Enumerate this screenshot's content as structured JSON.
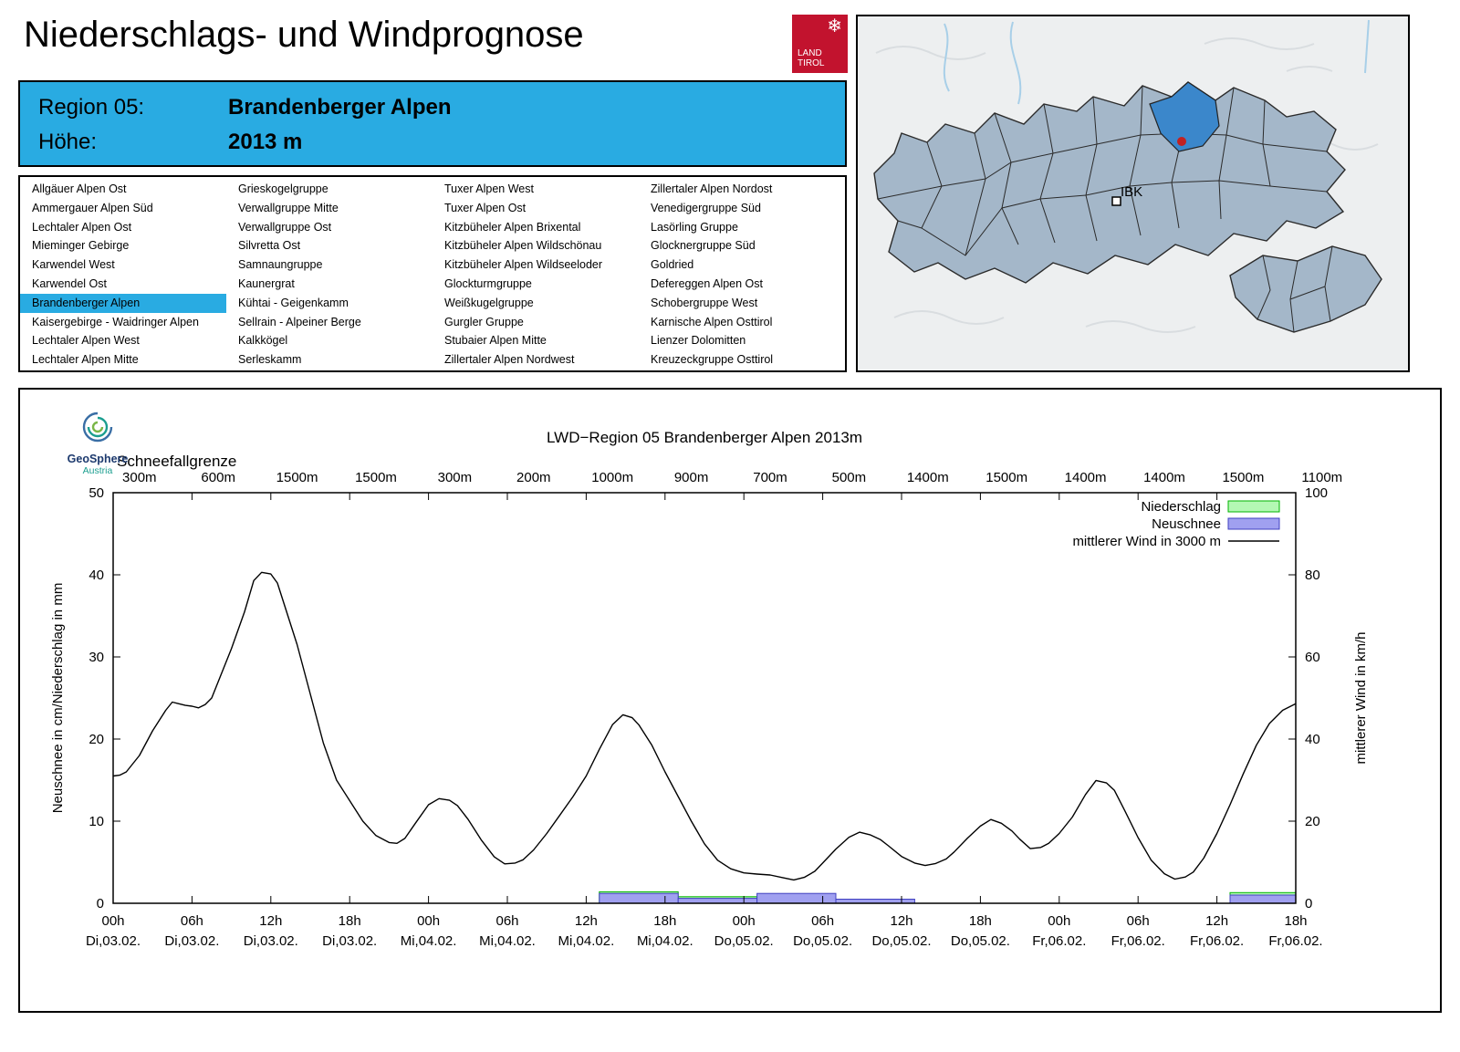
{
  "header": {
    "title": "Niederschlags- und Windprognose",
    "logo": {
      "line1": "LAND",
      "line2": "TIROL",
      "color": "#c2132e",
      "icon": "snowflake-icon"
    }
  },
  "region_box": {
    "region_label": "Region 05:",
    "region_value": "Brandenberger Alpen",
    "altitude_label": "Höhe:",
    "altitude_value": "2013 m",
    "background": "#29abe2"
  },
  "region_list": {
    "selected": "Brandenberger Alpen",
    "selected_color": "#29abe2",
    "columns": [
      [
        "Allgäuer Alpen Ost",
        "Ammergauer Alpen Süd",
        "Lechtaler Alpen Ost",
        "Mieminger Gebirge",
        "Karwendel West",
        "Karwendel Ost",
        "Brandenberger Alpen",
        "Kaisergebirge - Waidringer Alpen",
        "Lechtaler Alpen West",
        "Lechtaler Alpen Mitte"
      ],
      [
        "Grieskogelgruppe",
        "Verwallgruppe Mitte",
        "Verwallgruppe Ost",
        "Silvretta Ost",
        "Samnaungruppe",
        "Kaunergrat",
        "Kühtai - Geigenkamm",
        "Sellrain - Alpeiner Berge",
        "Kalkkögel",
        "Serleskamm"
      ],
      [
        "Tuxer Alpen West",
        "Tuxer Alpen Ost",
        "Kitzbüheler Alpen Brixental",
        "Kitzbüheler Alpen Wildschönau",
        "Kitzbüheler Alpen Wildseeloder",
        "Glockturmgruppe",
        "Weißkugelgruppe",
        "Gurgler Gruppe",
        "Stubaier Alpen Mitte",
        "Zillertaler Alpen Nordwest"
      ],
      [
        "Zillertaler Alpen Nordost",
        "Venedigergruppe Süd",
        "Lasörling Gruppe",
        "Glocknergruppe Süd",
        "Goldried",
        "Defereggen Alpen Ost",
        "Schobergruppe West",
        "Karnische Alpen Osttirol",
        "Lienzer Dolomitten",
        "Kreuzeckgruppe Osttirol"
      ]
    ]
  },
  "map": {
    "marker_label": "IBK",
    "region_fill": "#a4b7c9",
    "highlight_fill": "#3b87cb",
    "dot_color": "#c22222"
  },
  "chart": {
    "brand": {
      "name": "GeoSphere",
      "sub": "Austria"
    },
    "title": "LWD−Region 05 Brandenberger Alpen 2013m",
    "snowline": {
      "label": "Schneefallgrenze",
      "values": [
        "300m",
        "600m",
        "1500m",
        "1500m",
        "300m",
        "200m",
        "1000m",
        "900m",
        "700m",
        "500m",
        "1400m",
        "1500m",
        "1400m",
        "1400m",
        "1500m",
        "1100m"
      ]
    },
    "left_axis": {
      "label": "Neuschnee in cm/Niederschlag in mm",
      "min": 0,
      "max": 50,
      "ticks": [
        0,
        10,
        20,
        30,
        40,
        50
      ]
    },
    "right_axis": {
      "label": "mittlerer Wind in km/h",
      "min": 0,
      "max": 100,
      "ticks": [
        0,
        20,
        40,
        60,
        80,
        100
      ]
    },
    "x_axis": {
      "tick_step_h": 6,
      "hour_labels": [
        "00h",
        "06h",
        "12h",
        "18h",
        "00h",
        "06h",
        "12h",
        "18h",
        "00h",
        "06h",
        "12h",
        "18h",
        "00h",
        "06h",
        "12h",
        "18h"
      ],
      "date_labels": [
        "Di,03.02.",
        "Di,03.02.",
        "Di,03.02.",
        "Di,03.02.",
        "Mi,04.02.",
        "Mi,04.02.",
        "Mi,04.02.",
        "Mi,04.02.",
        "Do,05.02.",
        "Do,05.02.",
        "Do,05.02.",
        "Do,05.02.",
        "Fr,06.02.",
        "Fr,06.02.",
        "Fr,06.02.",
        "Fr,06.02."
      ]
    },
    "legend": [
      {
        "label": "Niederschlag",
        "type": "bar",
        "fill": "#b4f8b4",
        "stroke": "#00b400"
      },
      {
        "label": "Neuschnee",
        "type": "bar",
        "fill": "#a0a0f0",
        "stroke": "#4040c0"
      },
      {
        "label": "mittlerer Wind in 3000 m",
        "type": "line",
        "stroke": "#000000"
      }
    ]
  },
  "chart_data": {
    "type": "line+bar",
    "title": "LWD−Region 05 Brandenberger Alpen 2013m",
    "x_unit": "hours from Di 03.02. 00h",
    "x_range": [
      0,
      90
    ],
    "snowline_m": [
      300,
      600,
      1500,
      1500,
      300,
      200,
      1000,
      900,
      700,
      500,
      1400,
      1500,
      1400,
      1400,
      1500,
      1100
    ],
    "series": [
      {
        "name": "mittlerer Wind in 3000 m",
        "type": "line",
        "axis": "right",
        "unit": "km/h",
        "points": [
          [
            0,
            31
          ],
          [
            0.5,
            31.2
          ],
          [
            1,
            32
          ],
          [
            2,
            36
          ],
          [
            3,
            42
          ],
          [
            4,
            47
          ],
          [
            4.5,
            49
          ],
          [
            5,
            48.6
          ],
          [
            5.5,
            48.2
          ],
          [
            6,
            48
          ],
          [
            6.5,
            47.6
          ],
          [
            7,
            48.4
          ],
          [
            7.5,
            50
          ],
          [
            8,
            54
          ],
          [
            9,
            62
          ],
          [
            10,
            71
          ],
          [
            10.7,
            78.6
          ],
          [
            11.3,
            80.6
          ],
          [
            12,
            80.2
          ],
          [
            12.5,
            78
          ],
          [
            13,
            73
          ],
          [
            14,
            63
          ],
          [
            15,
            51
          ],
          [
            16,
            39
          ],
          [
            17,
            30
          ],
          [
            18,
            25
          ],
          [
            19,
            20
          ],
          [
            20,
            16.5
          ],
          [
            21,
            14.8
          ],
          [
            21.6,
            14.6
          ],
          [
            22.2,
            15.8
          ],
          [
            23,
            19.5
          ],
          [
            24,
            24
          ],
          [
            24.8,
            25.5
          ],
          [
            25.6,
            25.1
          ],
          [
            26.2,
            23.8
          ],
          [
            27,
            20.5
          ],
          [
            28,
            15.5
          ],
          [
            29,
            11.3
          ],
          [
            29.8,
            9.6
          ],
          [
            30.6,
            9.8
          ],
          [
            31.2,
            10.6
          ],
          [
            32,
            13
          ],
          [
            33,
            17
          ],
          [
            34,
            21.5
          ],
          [
            35,
            26
          ],
          [
            36,
            31
          ],
          [
            37,
            37.5
          ],
          [
            38,
            43.5
          ],
          [
            38.8,
            45.9
          ],
          [
            39.5,
            45.2
          ],
          [
            40,
            43.5
          ],
          [
            41,
            38.5
          ],
          [
            42,
            32
          ],
          [
            43,
            26
          ],
          [
            44,
            20
          ],
          [
            45,
            14.5
          ],
          [
            46,
            10.5
          ],
          [
            47,
            8.4
          ],
          [
            48,
            7.4
          ],
          [
            49,
            7.1
          ],
          [
            50,
            6.9
          ],
          [
            51,
            6.2
          ],
          [
            51.8,
            5.7
          ],
          [
            52.6,
            6.3
          ],
          [
            53.4,
            7.8
          ],
          [
            54,
            9.8
          ],
          [
            55,
            13.2
          ],
          [
            56,
            16.1
          ],
          [
            56.8,
            17.3
          ],
          [
            57.6,
            16.7
          ],
          [
            58.4,
            15.5
          ],
          [
            59,
            14
          ],
          [
            60,
            11.4
          ],
          [
            61,
            9.8
          ],
          [
            61.8,
            9.2
          ],
          [
            62.6,
            9.7
          ],
          [
            63.4,
            10.8
          ],
          [
            64,
            12.5
          ],
          [
            65,
            15.8
          ],
          [
            66,
            18.8
          ],
          [
            66.8,
            20.4
          ],
          [
            67.6,
            19.5
          ],
          [
            68.4,
            17.6
          ],
          [
            69,
            15.6
          ],
          [
            69.8,
            13.3
          ],
          [
            70.6,
            13.6
          ],
          [
            71.2,
            14.6
          ],
          [
            72,
            17
          ],
          [
            73,
            21
          ],
          [
            74,
            26.5
          ],
          [
            74.8,
            29.9
          ],
          [
            75.6,
            29.3
          ],
          [
            76.2,
            27.5
          ],
          [
            77,
            22.5
          ],
          [
            78,
            16
          ],
          [
            79,
            10.5
          ],
          [
            80,
            7.2
          ],
          [
            80.8,
            5.9
          ],
          [
            81.6,
            6.4
          ],
          [
            82.2,
            7.6
          ],
          [
            83,
            11
          ],
          [
            84,
            17
          ],
          [
            85,
            24
          ],
          [
            86,
            31.5
          ],
          [
            87,
            38.5
          ],
          [
            88,
            43.8
          ],
          [
            89,
            47
          ],
          [
            90,
            48.6
          ]
        ]
      },
      {
        "name": "Niederschlag",
        "type": "bar",
        "axis": "left",
        "unit": "mm",
        "bars": [
          [
            37,
            43,
            1.4
          ],
          [
            43,
            49,
            0.8
          ],
          [
            49,
            55,
            0.2
          ],
          [
            55,
            61,
            0.1
          ],
          [
            85,
            90,
            1.3
          ]
        ]
      },
      {
        "name": "Neuschnee",
        "type": "bar",
        "axis": "left",
        "unit": "cm",
        "bars": [
          [
            37,
            43,
            1.2
          ],
          [
            43,
            49,
            0.6
          ],
          [
            49,
            55,
            1.2
          ],
          [
            55,
            61,
            0.5
          ],
          [
            85,
            90,
            1.0
          ]
        ]
      }
    ]
  }
}
